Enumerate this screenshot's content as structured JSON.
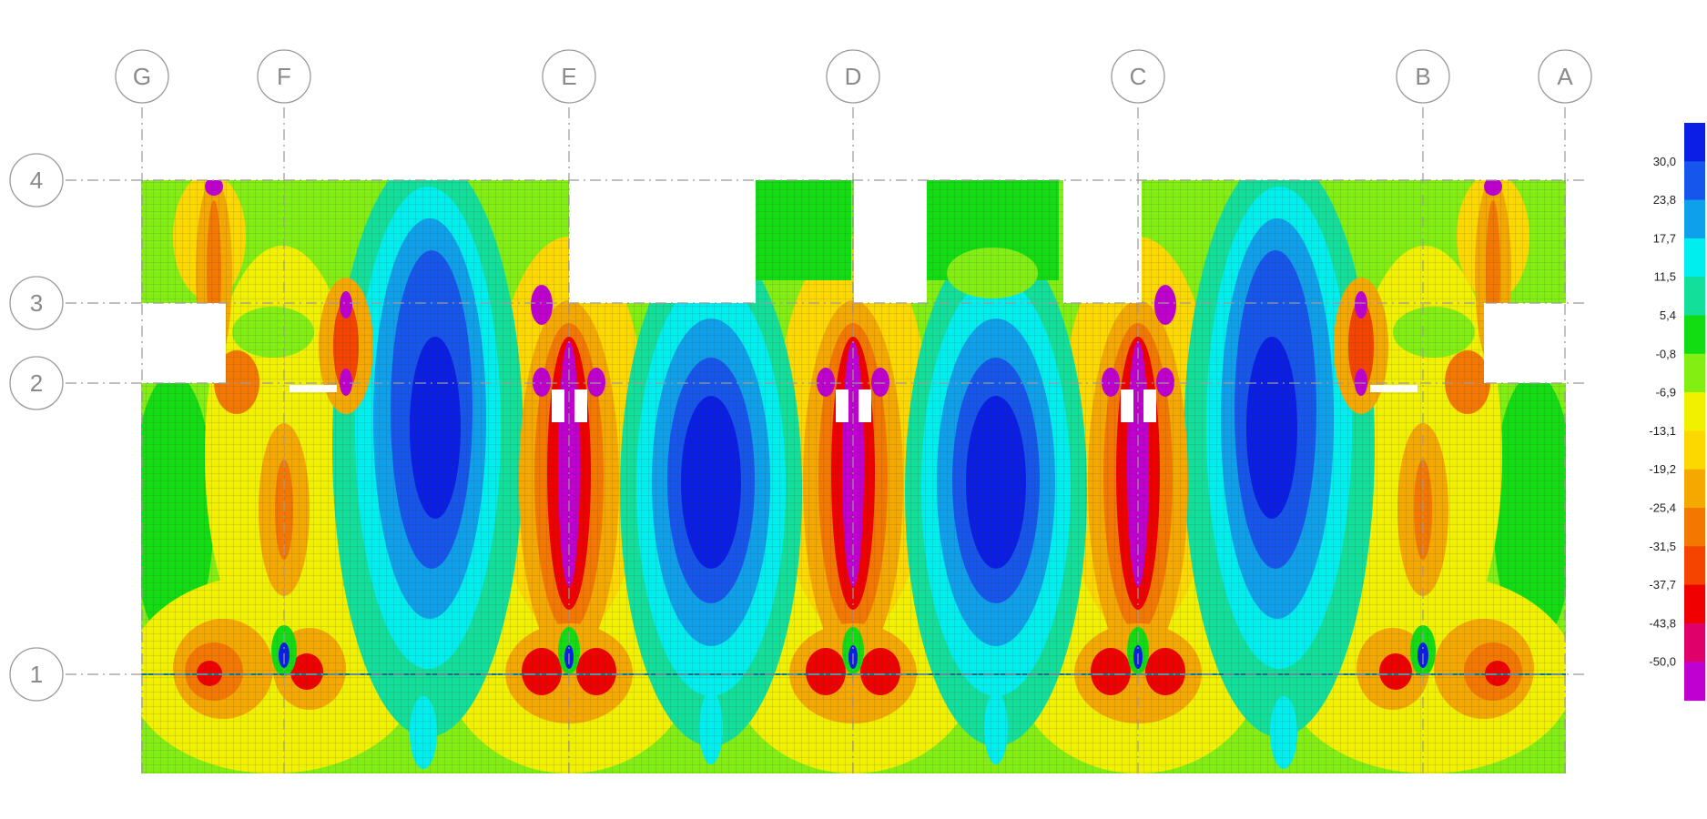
{
  "grid": {
    "columns": [
      "G",
      "F",
      "E",
      "D",
      "C",
      "B",
      "A"
    ],
    "rows": [
      "4",
      "3",
      "2",
      "1"
    ]
  },
  "legend": {
    "labels": [
      "30,0",
      "23,8",
      "17,7",
      "11,5",
      "5,4",
      "-0,8",
      "-6,9",
      "-13,1",
      "-19,2",
      "-25,4",
      "-31,5",
      "-37,7",
      "-43,8",
      "-50,0"
    ],
    "colors": [
      "#0a1ee6",
      "#1656ec",
      "#0ea0ea",
      "#00eeee",
      "#12e09a",
      "#12dd12",
      "#82ee12",
      "#f0f000",
      "#fcd800",
      "#f4a800",
      "#f47800",
      "#f44400",
      "#f00000",
      "#e0006a",
      "#c000d0"
    ]
  },
  "colors": {
    "grid_line": "#9a9a9a",
    "bubble_stroke": "#9a9a9a",
    "mesh": "#3a3a3a"
  }
}
